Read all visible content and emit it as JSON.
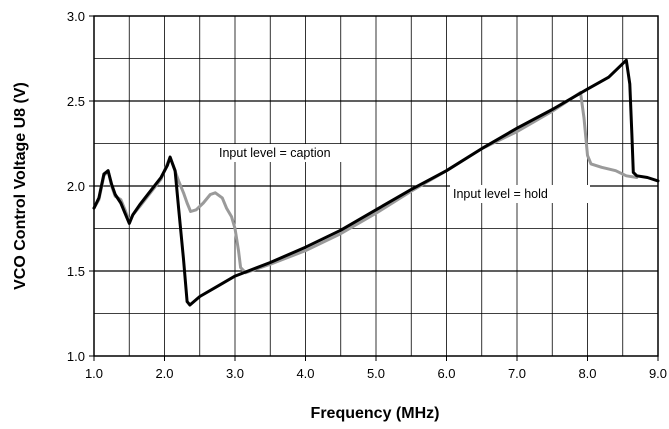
{
  "chart_data": {
    "type": "line",
    "title": "",
    "xlabel": "Frequency (MHz)",
    "ylabel": "VCO Control Voltage U8 (V)",
    "xlim": [
      1.0,
      9.0
    ],
    "ylim": [
      1.0,
      3.0
    ],
    "x_ticks": [
      "1.0",
      "2.0",
      "3.0",
      "4.0",
      "5.0",
      "6.0",
      "7.0",
      "8.0",
      "9.0"
    ],
    "y_ticks": [
      "1.0",
      "1.5",
      "2.0",
      "2.5",
      "3.0"
    ],
    "grid": true,
    "annotations": [
      "Input level = caption",
      "Input level = hold"
    ],
    "series": [
      {
        "color": "#9a9a9a",
        "points": [
          [
            1.0,
            1.87
          ],
          [
            1.07,
            1.92
          ],
          [
            1.14,
            2.06
          ],
          [
            1.2,
            2.09
          ],
          [
            1.25,
            2.0
          ],
          [
            1.3,
            1.94
          ],
          [
            1.38,
            1.92
          ],
          [
            1.44,
            1.86
          ],
          [
            1.5,
            1.79
          ],
          [
            1.55,
            1.83
          ],
          [
            1.65,
            1.88
          ],
          [
            1.8,
            1.96
          ],
          [
            1.95,
            2.04
          ],
          [
            2.08,
            2.17
          ],
          [
            2.2,
            2.03
          ],
          [
            2.27,
            1.96
          ],
          [
            2.32,
            1.9
          ],
          [
            2.37,
            1.85
          ],
          [
            2.45,
            1.86
          ],
          [
            2.55,
            1.9
          ],
          [
            2.65,
            1.95
          ],
          [
            2.72,
            1.96
          ],
          [
            2.82,
            1.93
          ],
          [
            2.88,
            1.87
          ],
          [
            2.95,
            1.82
          ],
          [
            3.0,
            1.75
          ],
          [
            3.05,
            1.62
          ],
          [
            3.08,
            1.52
          ],
          [
            3.15,
            1.49
          ],
          [
            3.5,
            1.54
          ],
          [
            4.0,
            1.62
          ],
          [
            4.5,
            1.72
          ],
          [
            5.0,
            1.84
          ],
          [
            5.5,
            1.97
          ],
          [
            6.0,
            2.09
          ],
          [
            6.5,
            2.22
          ],
          [
            7.0,
            2.32
          ],
          [
            7.5,
            2.44
          ],
          [
            7.9,
            2.55
          ],
          [
            7.95,
            2.4
          ],
          [
            8.0,
            2.18
          ],
          [
            8.05,
            2.13
          ],
          [
            8.2,
            2.11
          ],
          [
            8.4,
            2.09
          ],
          [
            8.55,
            2.06
          ],
          [
            8.7,
            2.05
          ]
        ]
      },
      {
        "color": "#000000",
        "points": [
          [
            1.0,
            1.87
          ],
          [
            1.07,
            1.93
          ],
          [
            1.14,
            2.07
          ],
          [
            1.2,
            2.09
          ],
          [
            1.25,
            2.01
          ],
          [
            1.3,
            1.95
          ],
          [
            1.38,
            1.9
          ],
          [
            1.44,
            1.84
          ],
          [
            1.5,
            1.78
          ],
          [
            1.55,
            1.83
          ],
          [
            1.65,
            1.89
          ],
          [
            1.8,
            1.97
          ],
          [
            1.95,
            2.05
          ],
          [
            2.04,
            2.12
          ],
          [
            2.08,
            2.17
          ],
          [
            2.15,
            2.09
          ],
          [
            2.2,
            1.87
          ],
          [
            2.27,
            1.57
          ],
          [
            2.32,
            1.32
          ],
          [
            2.36,
            1.3
          ],
          [
            2.5,
            1.35
          ],
          [
            2.75,
            1.41
          ],
          [
            3.0,
            1.47
          ],
          [
            3.5,
            1.55
          ],
          [
            4.0,
            1.64
          ],
          [
            4.5,
            1.74
          ],
          [
            5.0,
            1.86
          ],
          [
            5.5,
            1.98
          ],
          [
            6.0,
            2.09
          ],
          [
            6.5,
            2.22
          ],
          [
            7.0,
            2.34
          ],
          [
            7.5,
            2.45
          ],
          [
            8.0,
            2.57
          ],
          [
            8.3,
            2.64
          ],
          [
            8.55,
            2.74
          ],
          [
            8.6,
            2.6
          ],
          [
            8.63,
            2.3
          ],
          [
            8.65,
            2.08
          ],
          [
            8.7,
            2.06
          ],
          [
            8.85,
            2.05
          ],
          [
            9.0,
            2.03
          ]
        ]
      }
    ]
  }
}
